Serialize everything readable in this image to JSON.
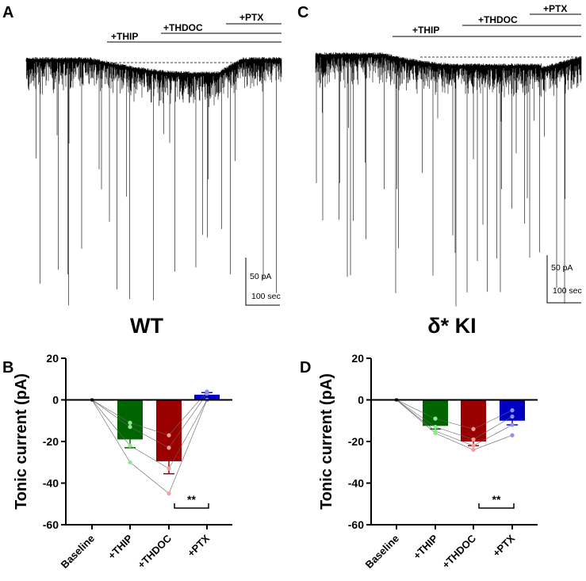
{
  "panel_letters": {
    "a": "A",
    "b": "B",
    "c": "C",
    "d": "D"
  },
  "traces": [
    {
      "title": "WT",
      "drugs": [
        "+THIP",
        "+THDOC",
        "+PTX"
      ],
      "scale_y": "50 pA",
      "scale_x": "100 sec"
    },
    {
      "title": "δ* KI",
      "drugs": [
        "+THIP",
        "+THDOC",
        "+PTX"
      ],
      "scale_y": "50 pA",
      "scale_x": "100 sec"
    }
  ],
  "colors": {
    "thip": "#006400",
    "thdoc": "#9b0000",
    "ptx": "#0000c0",
    "thip_pt": "#8fe88f",
    "thdoc_pt": "#f0a0a0",
    "ptx_pt": "#9090f0"
  },
  "chart_data": [
    {
      "type": "bar",
      "panel": "B",
      "categories": [
        "Baseline",
        "+THIP",
        "+THDOC",
        "+PTX"
      ],
      "values": [
        0,
        -19,
        -29.5,
        2.5
      ],
      "sem": [
        0,
        4,
        6,
        1
      ],
      "cells": [
        [
          0,
          -11,
          -17,
          4
        ],
        [
          0,
          -13,
          -23,
          3
        ],
        [
          0,
          -22,
          -33,
          0
        ],
        [
          0,
          -30,
          -45,
          0
        ]
      ],
      "ylabel": "Tonic current (pA)",
      "ylim": [
        -60,
        20
      ],
      "yticks": [
        20,
        0,
        -20,
        -40,
        -60
      ],
      "significance": {
        "between": [
          "+THDOC",
          "+PTX"
        ],
        "label": "**"
      }
    },
    {
      "type": "bar",
      "panel": "D",
      "categories": [
        "Baseline",
        "+THIP",
        "+THDOC",
        "+PTX"
      ],
      "values": [
        0,
        -12.5,
        -20,
        -10
      ],
      "sem": [
        0,
        1.5,
        2,
        2
      ],
      "cells": [
        [
          0,
          -9,
          -14,
          -5
        ],
        [
          0,
          -13,
          -19,
          -8
        ],
        [
          0,
          -15,
          -22,
          -12
        ],
        [
          0,
          -16,
          -24,
          -17
        ]
      ],
      "ylabel": "Tonic current (pA)",
      "ylim": [
        -60,
        20
      ],
      "yticks": [
        20,
        0,
        -20,
        -40,
        -60
      ],
      "significance": {
        "between": [
          "+THDOC",
          "+PTX"
        ],
        "label": "**"
      }
    }
  ]
}
